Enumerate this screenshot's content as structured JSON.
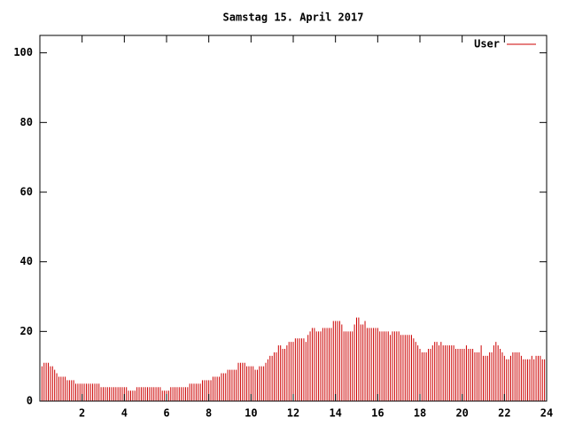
{
  "chart_data": {
    "type": "impulse",
    "title": "Samstag 15. April 2017",
    "legend": "top-right",
    "color": "#cc0000",
    "series": [
      {
        "name": "User",
        "color": "#cc0000",
        "x": [
          0,
          0.1,
          0.2,
          0.3,
          0.4,
          0.5,
          0.6,
          0.7,
          0.8,
          0.9,
          1,
          1.1,
          1.2,
          1.3,
          1.4,
          1.5,
          1.6,
          1.7,
          1.8,
          1.9,
          2,
          2.1,
          2.2,
          2.3,
          2.4,
          2.5,
          2.6,
          2.7,
          2.8,
          2.9,
          3,
          3.1,
          3.2,
          3.3,
          3.4,
          3.5,
          3.6,
          3.7,
          3.8,
          3.9,
          4,
          4.1,
          4.2,
          4.3,
          4.4,
          4.5,
          4.6,
          4.7,
          4.8,
          4.9,
          5,
          5.1,
          5.2,
          5.3,
          5.4,
          5.5,
          5.6,
          5.7,
          5.8,
          5.9,
          6,
          6.1,
          6.2,
          6.3,
          6.4,
          6.5,
          6.6,
          6.7,
          6.8,
          6.9,
          7,
          7.1,
          7.2,
          7.3,
          7.4,
          7.5,
          7.6,
          7.7,
          7.8,
          7.9,
          8,
          8.1,
          8.2,
          8.3,
          8.4,
          8.5,
          8.6,
          8.7,
          8.8,
          8.9,
          9,
          9.1,
          9.2,
          9.3,
          9.4,
          9.5,
          9.6,
          9.7,
          9.8,
          9.9,
          10,
          10.1,
          10.2,
          10.3,
          10.4,
          10.5,
          10.6,
          10.7,
          10.8,
          10.9,
          11,
          11.1,
          11.2,
          11.3,
          11.4,
          11.5,
          11.6,
          11.7,
          11.8,
          11.9,
          12,
          12.1,
          12.2,
          12.3,
          12.4,
          12.5,
          12.6,
          12.7,
          12.8,
          12.9,
          13,
          13.1,
          13.2,
          13.3,
          13.4,
          13.5,
          13.6,
          13.7,
          13.8,
          13.9,
          14,
          14.1,
          14.2,
          14.3,
          14.4,
          14.5,
          14.6,
          14.7,
          14.8,
          14.9,
          15,
          15.1,
          15.2,
          15.3,
          15.4,
          15.5,
          15.6,
          15.7,
          15.8,
          15.9,
          16,
          16.1,
          16.2,
          16.3,
          16.4,
          16.5,
          16.6,
          16.7,
          16.8,
          16.9,
          17,
          17.1,
          17.2,
          17.3,
          17.4,
          17.5,
          17.6,
          17.7,
          17.8,
          17.9,
          18,
          18.1,
          18.2,
          18.3,
          18.4,
          18.5,
          18.6,
          18.7,
          18.8,
          18.9,
          19,
          19.1,
          19.2,
          19.3,
          19.4,
          19.5,
          19.6,
          19.7,
          19.8,
          19.9,
          20,
          20.1,
          20.2,
          20.3,
          20.4,
          20.5,
          20.6,
          20.7,
          20.8,
          20.9,
          21,
          21.1,
          21.2,
          21.3,
          21.4,
          21.5,
          21.6,
          21.7,
          21.8,
          21.9,
          22,
          22.1,
          22.2,
          22.3,
          22.4,
          22.5,
          22.6,
          22.7,
          22.8,
          22.9,
          23,
          23.1,
          23.2,
          23.3,
          23.4,
          23.5,
          23.6,
          23.7,
          23.8,
          23.9
        ],
        "values": [
          10,
          10,
          11,
          11,
          11,
          10,
          10,
          9,
          8,
          7,
          7,
          7,
          7,
          6,
          6,
          6,
          6,
          5,
          5,
          5,
          5,
          5,
          5,
          5,
          5,
          5,
          5,
          5,
          5,
          4,
          4,
          4,
          4,
          4,
          4,
          4,
          4,
          4,
          4,
          4,
          4,
          4,
          3,
          3,
          3,
          3,
          4,
          4,
          4,
          4,
          4,
          4,
          4,
          4,
          4,
          4,
          4,
          4,
          3,
          3,
          3,
          3,
          4,
          4,
          4,
          4,
          4,
          4,
          4,
          4,
          4,
          5,
          5,
          5,
          5,
          5,
          5,
          6,
          6,
          6,
          6,
          6,
          7,
          7,
          7,
          7,
          8,
          8,
          8,
          9,
          9,
          9,
          9,
          9,
          11,
          11,
          11,
          11,
          10,
          10,
          10,
          10,
          9,
          9,
          10,
          10,
          10,
          11,
          12,
          13,
          13,
          14,
          14,
          16,
          16,
          15,
          15,
          16,
          17,
          17,
          17,
          18,
          18,
          18,
          18,
          18,
          17,
          19,
          20,
          21,
          21,
          20,
          20,
          20,
          21,
          21,
          21,
          21,
          21,
          23,
          23,
          23,
          23,
          22,
          20,
          20,
          20,
          20,
          20,
          22,
          24,
          24,
          22,
          22,
          23,
          21,
          21,
          21,
          21,
          21,
          21,
          20,
          20,
          20,
          20,
          20,
          19,
          20,
          20,
          20,
          20,
          19,
          19,
          19,
          19,
          19,
          19,
          18,
          17,
          16,
          15,
          14,
          14,
          14,
          15,
          15,
          16,
          17,
          17,
          16,
          17,
          16,
          16,
          16,
          16,
          16,
          16,
          15,
          15,
          15,
          15,
          15,
          16,
          15,
          15,
          15,
          14,
          14,
          14,
          16,
          13,
          13,
          13,
          14,
          14,
          16,
          17,
          16,
          15,
          14,
          13,
          12,
          12,
          13,
          14,
          14,
          14,
          14,
          13,
          12,
          12,
          12,
          12,
          13,
          12,
          13,
          13,
          13,
          12,
          12
        ]
      }
    ],
    "xlim": [
      0,
      24
    ],
    "xticks": [
      2,
      4,
      6,
      8,
      10,
      12,
      14,
      16,
      18,
      20,
      22,
      24
    ],
    "ylim": [
      0,
      105
    ],
    "yticks": [
      0,
      20,
      40,
      60,
      80,
      100
    ]
  }
}
